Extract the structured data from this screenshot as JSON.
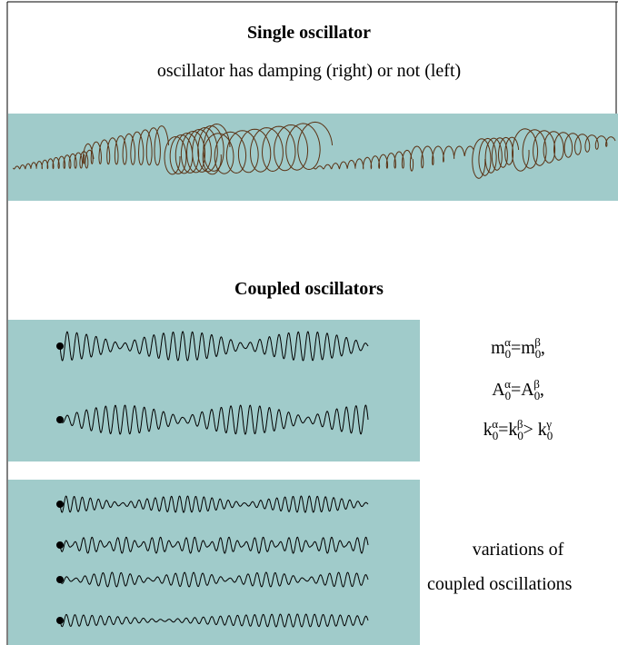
{
  "header": {
    "title": "Single oscillator",
    "subtitle": "oscillator has damping (right) or not (left)"
  },
  "section": {
    "title": "Coupled oscillators"
  },
  "equations": [
    [
      "m",
      "0",
      "α",
      "=m",
      "0",
      "β",
      ","
    ],
    [
      "A",
      "0",
      "α",
      "=A",
      "0",
      "β",
      ","
    ],
    [
      "k",
      "0",
      "α",
      "=k",
      "0",
      "β",
      "> k",
      "0",
      "γ"
    ]
  ],
  "caption": [
    "variations of",
    "coupled oscillations"
  ]
}
